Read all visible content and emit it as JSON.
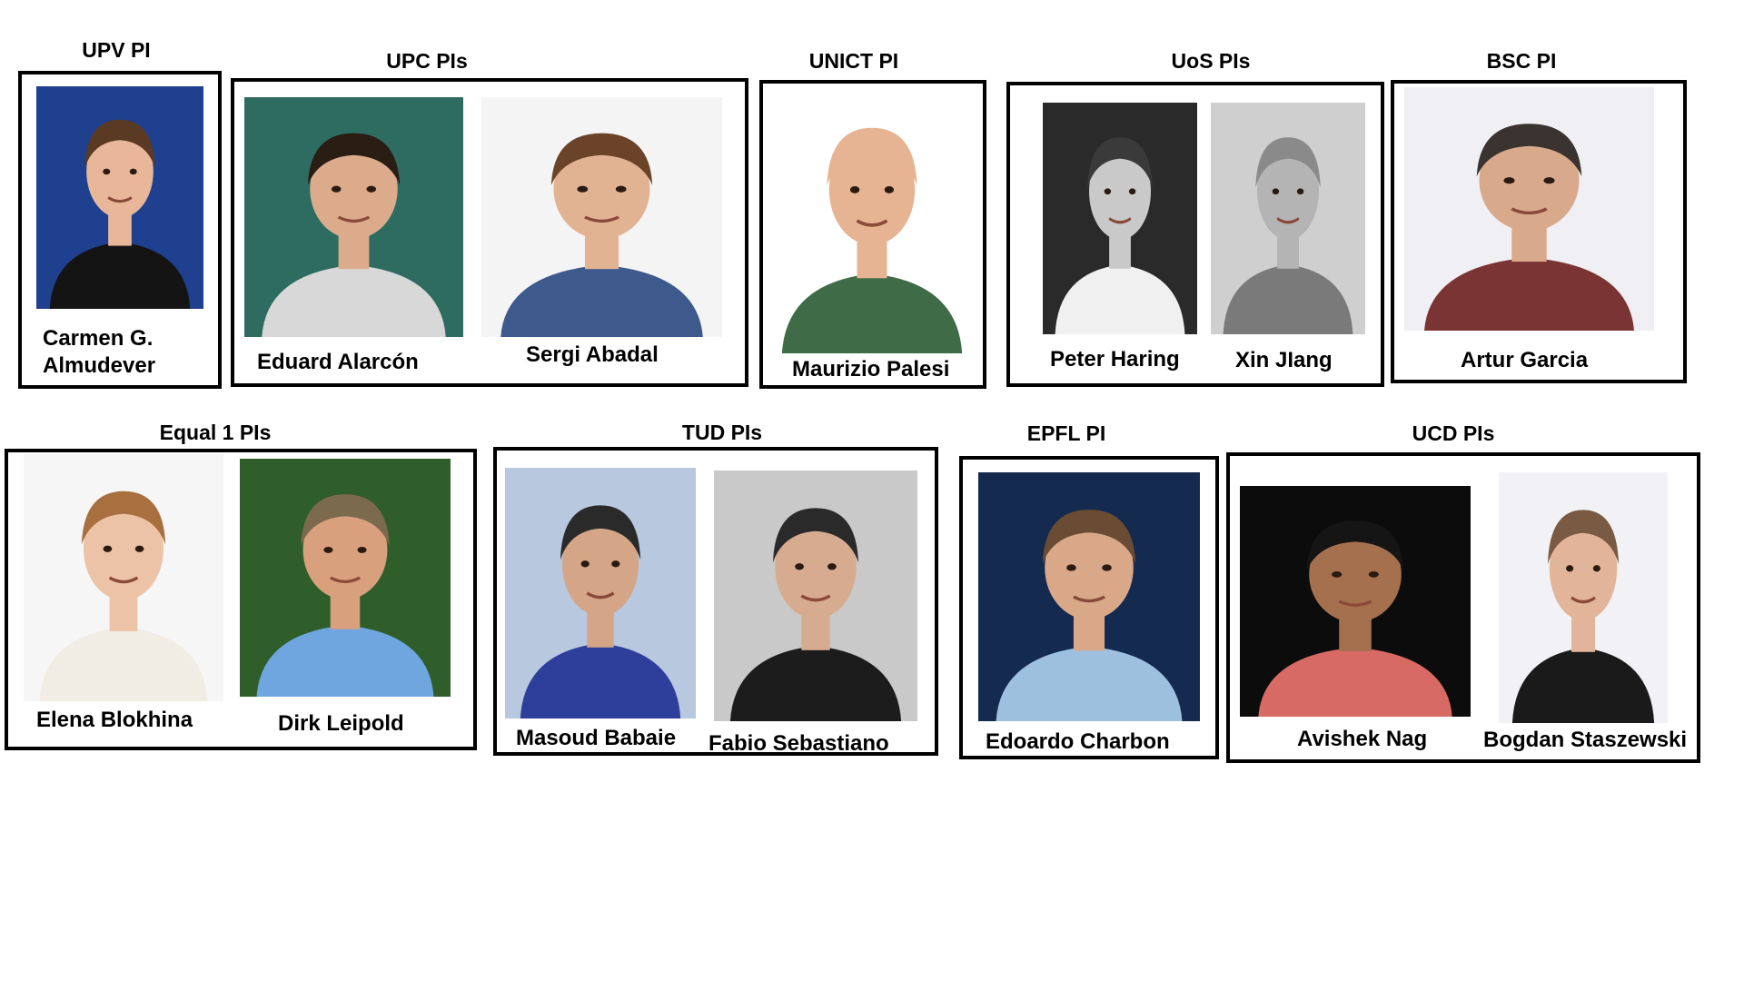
{
  "groups": {
    "upv": {
      "title": "UPV PI",
      "people": [
        {
          "name_line1": "Carmen G.",
          "name_line2": "Almudever",
          "photo_icon": "portrait-photo-icon",
          "bg": "#1f3f8f",
          "shirt": "#141414",
          "hair": "#5a3a22",
          "skin": "#e8b79a"
        }
      ]
    },
    "upc": {
      "title": "UPC PIs",
      "people": [
        {
          "name": "Eduard Alarcón",
          "photo_icon": "portrait-photo-icon",
          "bg": "#2e6b60",
          "shirt": "#d8d8d8",
          "hair": "#2a1d14",
          "skin": "#dcab8c"
        },
        {
          "name": "Sergi Abadal",
          "photo_icon": "portrait-photo-icon",
          "bg": "#f4f4f4",
          "shirt": "#3e5a8c",
          "hair": "#6a4328",
          "skin": "#e2b393"
        }
      ]
    },
    "unict": {
      "title": "UNICT PI",
      "people": [
        {
          "name": "Maurizio Palesi",
          "photo_icon": "portrait-photo-icon",
          "bg": "#ffffff",
          "shirt": "#3f6b47",
          "hair": "#e6b493",
          "skin": "#e6b493"
        }
      ]
    },
    "uos": {
      "title": "UoS PIs",
      "people": [
        {
          "name": "Peter Haring",
          "photo_icon": "portrait-photo-icon",
          "bg": "#2a2a2a",
          "shirt": "#f0f0f0",
          "hair": "#3a3a3a",
          "skin": "#c9c9c9"
        },
        {
          "name": "Xin JIang",
          "photo_icon": "portrait-photo-icon",
          "bg": "#cfcfcf",
          "shirt": "#7a7a7a",
          "hair": "#8a8a8a",
          "skin": "#b4b4b4"
        }
      ]
    },
    "bsc": {
      "title": "BSC PI",
      "people": [
        {
          "name": "Artur Garcia",
          "photo_icon": "portrait-photo-icon",
          "bg": "#f0f0f4",
          "shirt": "#7a3434",
          "hair": "#3a3330",
          "skin": "#d9a98c"
        }
      ]
    },
    "equal1": {
      "title": "Equal 1 PIs",
      "people": [
        {
          "name": "Elena Blokhina",
          "photo_icon": "portrait-photo-icon",
          "bg": "#f6f6f6",
          "shirt": "#f1ece4",
          "hair": "#a8703f",
          "skin": "#ecc3a6"
        },
        {
          "name": "Dirk Leipold",
          "photo_icon": "portrait-photo-icon",
          "bg": "#2f5e2a",
          "shirt": "#6fa6e0",
          "hair": "#7c6a4e",
          "skin": "#d8a07c"
        }
      ]
    },
    "tud": {
      "title": "TUD PIs",
      "people": [
        {
          "name": "Masoud Babaie",
          "photo_icon": "portrait-photo-icon",
          "bg": "#b7c8df",
          "shirt": "#2d3f9a",
          "hair": "#2a2a2a",
          "skin": "#d4a586"
        },
        {
          "name": "Fabio Sebastiano",
          "photo_icon": "portrait-photo-icon",
          "bg": "#c9c9c9",
          "shirt": "#1c1c1c",
          "hair": "#2a2a2a",
          "skin": "#d7ab90"
        }
      ]
    },
    "epfl": {
      "title": "EPFL PI",
      "people": [
        {
          "name": "Edoardo Charbon",
          "photo_icon": "portrait-photo-icon",
          "bg": "#142a4f",
          "shirt": "#9ec0df",
          "hair": "#6a4c34",
          "skin": "#d8a888"
        }
      ]
    },
    "ucd": {
      "title": "UCD PIs",
      "people": [
        {
          "name": "Avishek Nag",
          "photo_icon": "portrait-photo-icon",
          "bg": "#0c0c0c",
          "shirt": "#d86a66",
          "hair": "#151515",
          "skin": "#a5704e"
        },
        {
          "name": "Bogdan Staszewski",
          "photo_icon": "portrait-photo-icon",
          "bg": "#f2f2f6",
          "shirt": "#1a1a1a",
          "hair": "#7a5a42",
          "skin": "#e2b59a"
        }
      ]
    }
  }
}
